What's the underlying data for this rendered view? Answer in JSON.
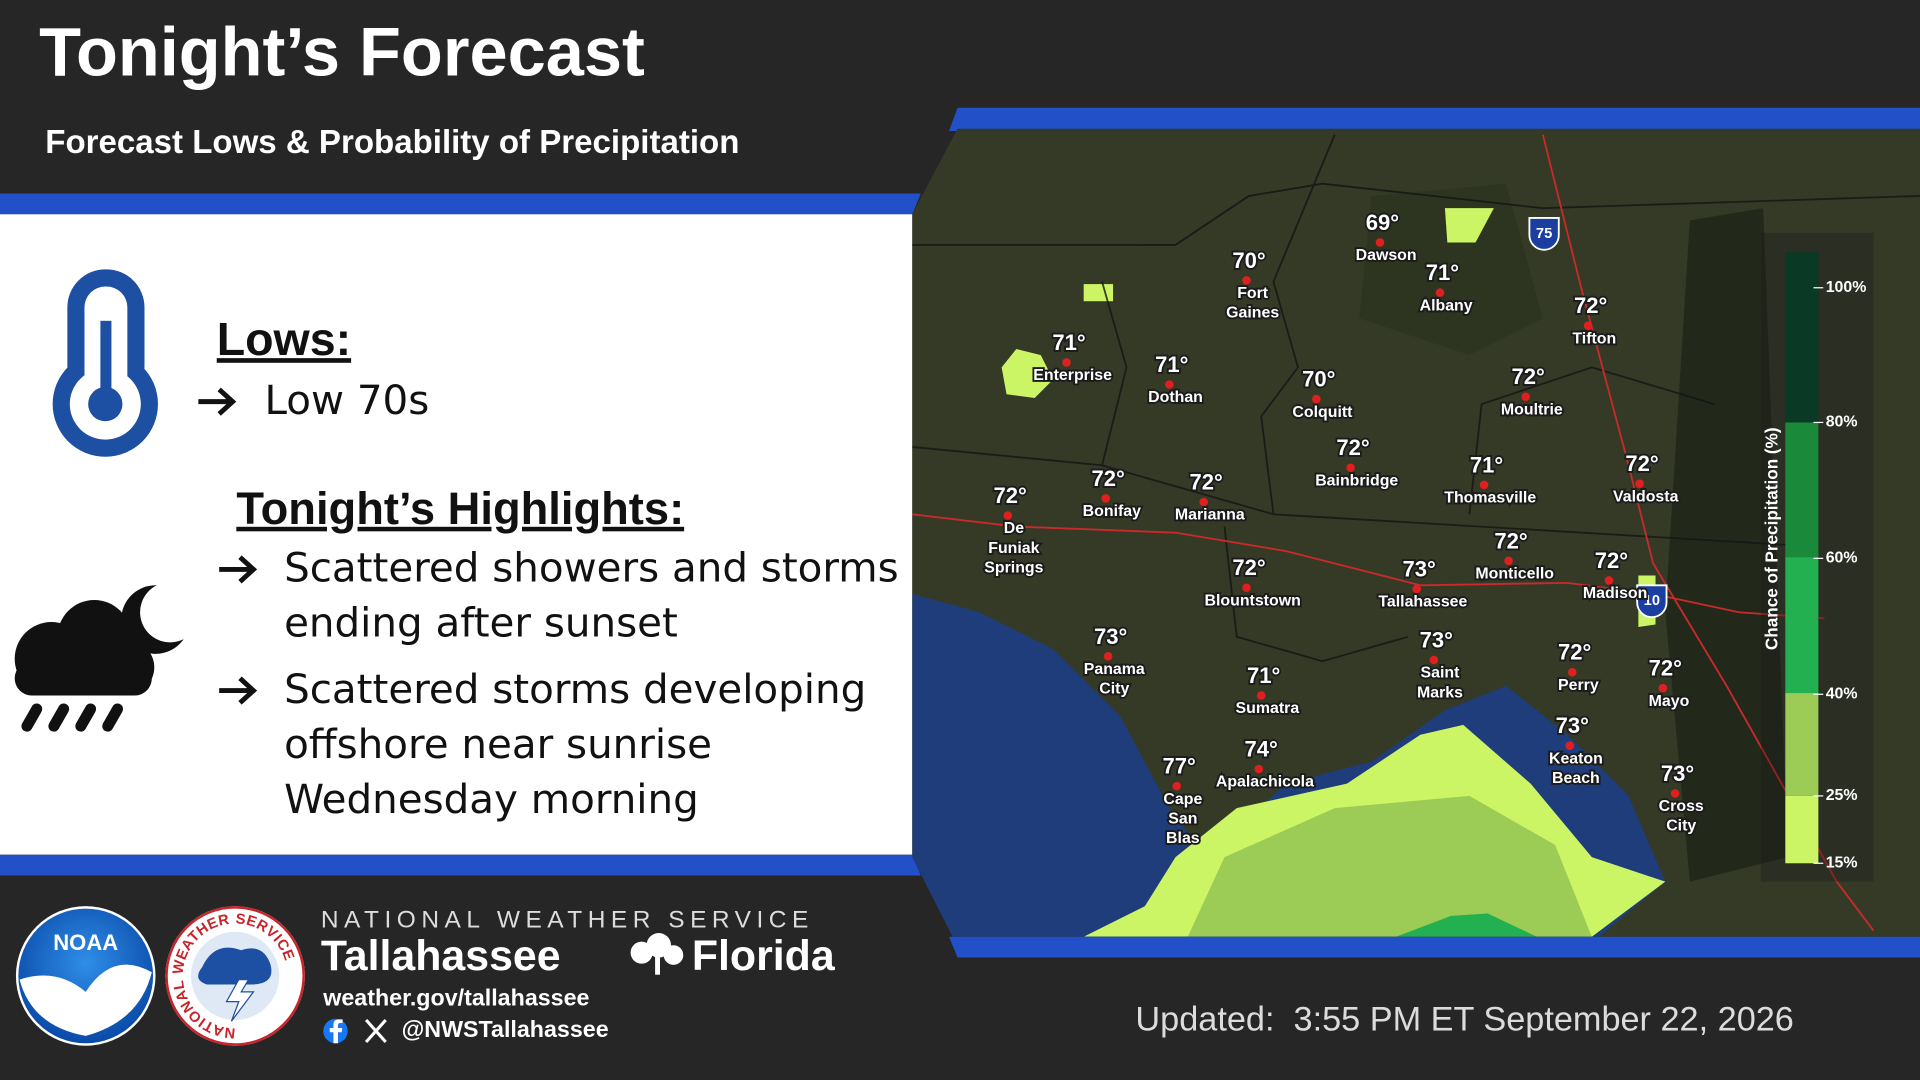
{
  "header": {
    "title": "Tonight’s Forecast",
    "subtitle": "Forecast Lows & Probability of Precipitation"
  },
  "lows": {
    "heading": "Lows:",
    "items": [
      "Low 70s"
    ]
  },
  "highlights": {
    "heading": "Tonight’s Highlights:",
    "items": [
      [
        "Scattered showers and storms",
        "ending after sunset"
      ],
      [
        "Scattered storms developing",
        "offshore near sunrise",
        "Wednesday morning"
      ]
    ]
  },
  "map": {
    "cities": [
      {
        "temp": "69°",
        "name": [
          "Dawson"
        ]
      },
      {
        "temp": "70°",
        "name": [
          "Fort",
          "Gaines"
        ]
      },
      {
        "temp": "71°",
        "name": [
          "Albany"
        ]
      },
      {
        "temp": "72°",
        "name": [
          "Tifton"
        ]
      },
      {
        "temp": "71°",
        "name": [
          "Enterprise"
        ]
      },
      {
        "temp": "71°",
        "name": [
          "Dothan"
        ]
      },
      {
        "temp": "70°",
        "name": [
          "Colquitt"
        ]
      },
      {
        "temp": "72°",
        "name": [
          "Moultrie"
        ]
      },
      {
        "temp": "72°",
        "name": [
          "Bainbridge"
        ]
      },
      {
        "temp": "71°",
        "name": [
          "Thomasville"
        ]
      },
      {
        "temp": "72°",
        "name": [
          "Valdosta"
        ]
      },
      {
        "temp": "72°",
        "name": [
          "De",
          "Funiak",
          "Springs"
        ]
      },
      {
        "temp": "72°",
        "name": [
          "Bonifay"
        ]
      },
      {
        "temp": "72°",
        "name": [
          "Marianna"
        ]
      },
      {
        "temp": "72°",
        "name": [
          "Monticello"
        ]
      },
      {
        "temp": "72°",
        "name": [
          "Madison"
        ]
      },
      {
        "temp": "72°",
        "name": [
          "Blountstown"
        ]
      },
      {
        "temp": "73°",
        "name": [
          "Tallahassee"
        ]
      },
      {
        "temp": "73°",
        "name": [
          "Panama",
          "City"
        ]
      },
      {
        "temp": "73°",
        "name": [
          "Saint",
          "Marks"
        ]
      },
      {
        "temp": "72°",
        "name": [
          "Perry"
        ]
      },
      {
        "temp": "71°",
        "name": [
          "Sumatra"
        ]
      },
      {
        "temp": "72°",
        "name": [
          "Mayo"
        ]
      },
      {
        "temp": "73°",
        "name": [
          "Keaton",
          "Beach"
        ]
      },
      {
        "temp": "74°",
        "name": [
          "Apalachicola"
        ]
      },
      {
        "temp": "73°",
        "name": [
          "Cross",
          "City"
        ]
      },
      {
        "temp": "77°",
        "name": [
          "Cape",
          "San",
          "Blas"
        ]
      }
    ],
    "shields": [
      "75",
      "10"
    ],
    "legend": {
      "title": "Chance of Precipitation (%)",
      "labels": [
        "100%",
        "80%",
        "60%",
        "40%",
        "25%",
        "15%"
      ]
    }
  },
  "footer": {
    "noaa_logo": "NOAA",
    "nws_logo": "NATIONAL WEATHER SERVICE",
    "agency": "NATIONAL WEATHER SERVICE",
    "office": "Tallahassee",
    "state": "Florida",
    "website": "weather.gov/tallahassee",
    "social": "@NWSTallahassee",
    "updated": "Updated:  3:55 PM ET September 22, 2026"
  }
}
